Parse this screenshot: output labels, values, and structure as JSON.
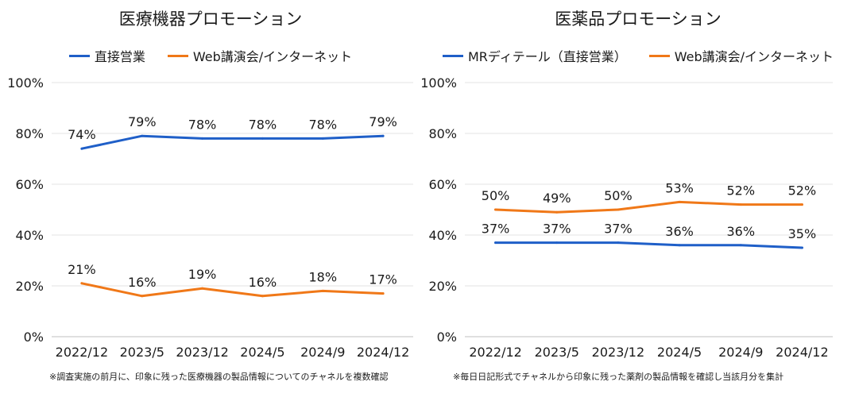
{
  "chart_data": [
    {
      "type": "line",
      "title": "医療機器プロモーション",
      "categories": [
        "2022/12",
        "2023/5",
        "2023/12",
        "2024/5",
        "2024/9",
        "2024/12"
      ],
      "ylim": [
        0,
        100
      ],
      "yticks": [
        "0%",
        "20%",
        "40%",
        "60%",
        "80%",
        "100%"
      ],
      "grid": true,
      "legend_position": "top",
      "series": [
        {
          "name": "直接営業",
          "color": "#1f5fc8",
          "values": [
            74,
            79,
            78,
            78,
            78,
            79
          ],
          "labels": [
            "74%",
            "79%",
            "78%",
            "78%",
            "78%",
            "79%"
          ]
        },
        {
          "name": "Web講演会/インターネット",
          "color": "#f07818",
          "values": [
            21,
            16,
            19,
            16,
            18,
            17
          ],
          "labels": [
            "21%",
            "16%",
            "19%",
            "16%",
            "18%",
            "17%"
          ]
        }
      ],
      "footnote": "※調査実施の前月に、印象に残った医療機器の製品情報についてのチャネルを複数確認"
    },
    {
      "type": "line",
      "title": "医薬品プロモーション",
      "categories": [
        "2022/12",
        "2023/5",
        "2023/12",
        "2024/5",
        "2024/9",
        "2024/12"
      ],
      "ylim": [
        0,
        100
      ],
      "yticks": [
        "0%",
        "20%",
        "40%",
        "60%",
        "80%",
        "100%"
      ],
      "grid": true,
      "legend_position": "top",
      "series": [
        {
          "name": "MRディテール（直接営業）",
          "color": "#1f5fc8",
          "values": [
            37,
            37,
            37,
            36,
            36,
            35
          ],
          "labels": [
            "37%",
            "37%",
            "37%",
            "36%",
            "36%",
            "35%"
          ]
        },
        {
          "name": "Web講演会/インターネット",
          "color": "#f07818",
          "values": [
            50,
            49,
            50,
            53,
            52,
            52
          ],
          "labels": [
            "50%",
            "49%",
            "50%",
            "53%",
            "52%",
            "52%"
          ]
        }
      ],
      "footnote": "※毎日日記形式でチャネルから印象に残った薬剤の製品情報を確認し当該月分を集計"
    }
  ]
}
